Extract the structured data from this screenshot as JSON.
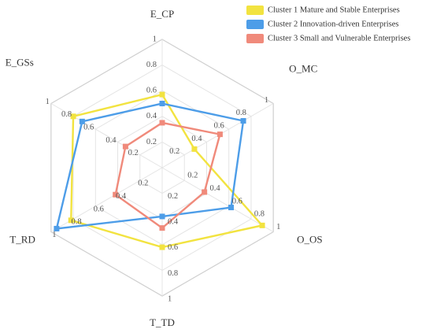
{
  "chart_data": {
    "type": "radar",
    "axes": [
      "E_CP",
      "O_MC",
      "O_OS",
      "T_TD",
      "T_RD",
      "E_GSs"
    ],
    "tick_labels": [
      "0.2",
      "0.4",
      "0.6",
      "0.8",
      "1"
    ],
    "range": [
      0,
      1
    ],
    "grid": true,
    "legend_position": "top-right",
    "series": [
      {
        "name": "Cluster 1 Mature and Stable Enterprises",
        "color": "#F2E340",
        "values": [
          0.57,
          0.29,
          0.9,
          0.62,
          0.82,
          0.8
        ]
      },
      {
        "name": "Cluster 2 Innovation-driven Enterprises",
        "color": "#4D9DE8",
        "values": [
          0.5,
          0.73,
          0.62,
          0.38,
          0.95,
          0.72
        ]
      },
      {
        "name": "Cluster 3 Small and Vulnerable Enterprises",
        "color": "#F08A7B",
        "values": [
          0.35,
          0.52,
          0.38,
          0.47,
          0.42,
          0.33
        ]
      }
    ]
  }
}
